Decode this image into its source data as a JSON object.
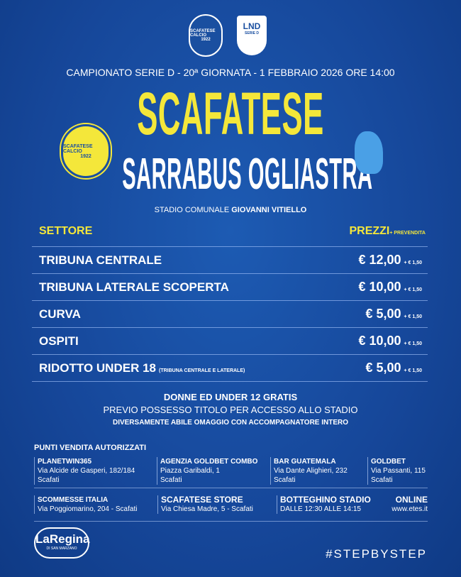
{
  "logos": {
    "club_top": "SCAFATESE CALCIO",
    "club_year": "1922",
    "lnd": "LND",
    "lnd_sub": "SERIE D",
    "home": "SCAFATESE CALCIO",
    "home_year": "1922",
    "sponsor": "LaRegina",
    "sponsor_sub": "DI SAN MARZANO"
  },
  "header": "CAMPIONATO SERIE D - 20ª GIORNATA - 1 FEBBRAIO 2026 ORE 14:00",
  "home_team": "SCAFATESE",
  "away_team": "SARRABUS OGLIASTRA",
  "stadium": {
    "prefix": "STADIO COMUNALE",
    "name": "GIOVANNI VITIELLO"
  },
  "table": {
    "col_sector": "SETTORE",
    "col_price": "PREZZI",
    "col_price_sub": "+ PREVENDITA",
    "rows": [
      {
        "name": "TRIBUNA CENTRALE",
        "note": "",
        "price": "€ 12,00",
        "fee": "+ € 1,50"
      },
      {
        "name": "TRIBUNA LATERALE SCOPERTA",
        "note": "",
        "price": "€ 10,00",
        "fee": "+ € 1,50"
      },
      {
        "name": "CURVA",
        "note": "",
        "price": "€ 5,00",
        "fee": "+ € 1,50"
      },
      {
        "name": "OSPITI",
        "note": "",
        "price": "€ 10,00",
        "fee": "+ € 1,50"
      },
      {
        "name": "RIDOTTO UNDER 18",
        "note": "(TRIBUNA CENTRALE E LATERALE)",
        "price": "€ 5,00",
        "fee": "+ € 1,50"
      }
    ]
  },
  "notes": [
    "DONNE ED UNDER 12 GRATIS",
    "PREVIO POSSESSO TITOLO PER ACCESSO ALLO STADIO",
    "DIVERSAMENTE ABILE OMAGGIO CON ACCOMPAGNATORE INTERO"
  ],
  "sales": {
    "title": "PUNTI VENDITA AUTORIZZATI",
    "row1": [
      {
        "name": "PLANETWIN365",
        "l1": "Via Alcide de Gasperi, 182/184",
        "l2": "Scafati"
      },
      {
        "name": "AGENZIA GOLDBET COMBO",
        "l1": "Piazza Garibaldi, 1",
        "l2": "Scafati"
      },
      {
        "name": "BAR GUATEMALA",
        "l1": "Via Dante Alighieri, 232",
        "l2": "Scafati"
      },
      {
        "name": "GOLDBET",
        "l1": "Via Passanti, 115",
        "l2": "Scafati"
      }
    ],
    "row2": [
      {
        "name": "SCOMMESSE ITALIA",
        "l1": "Via Poggiomarino, 204 - Scafati"
      },
      {
        "name": "SCAFATESE STORE",
        "l1": "Via Chiesa Madre, 5 - Scafati"
      },
      {
        "name": "BOTTEGHINO STADIO",
        "l1": "DALLE 12:30 ALLE 14:15"
      },
      {
        "name": "ONLINE",
        "l1": "www.etes.it"
      }
    ]
  },
  "hashtag": "#STEPBYSTEP",
  "colors": {
    "background": "#16479a",
    "accent": "#f4e73a"
  }
}
